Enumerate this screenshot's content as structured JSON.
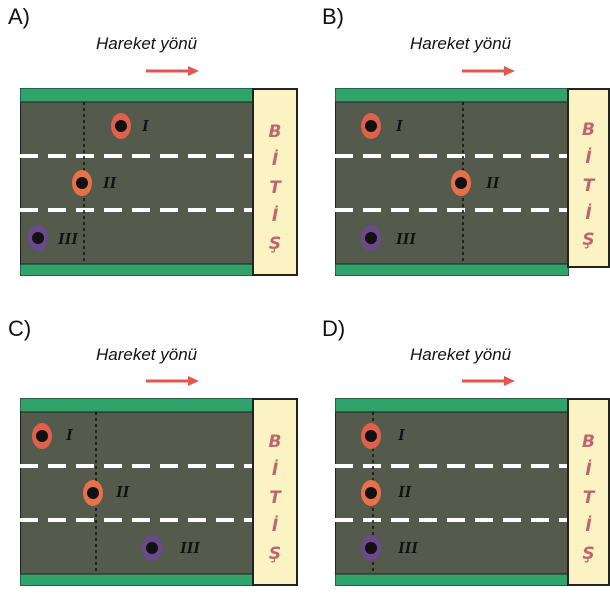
{
  "panels": [
    {
      "id": "A",
      "label": "A)"
    },
    {
      "id": "B",
      "label": "B)"
    },
    {
      "id": "C",
      "label": "C)"
    },
    {
      "id": "D",
      "label": "D)"
    }
  ],
  "direction_text": "Hareket yönü",
  "finish_letters": [
    "B",
    "İ",
    "T",
    "İ",
    "Ş"
  ],
  "lane_labels": [
    "I",
    "II",
    "III"
  ],
  "colors": {
    "asphalt": "#545a4c",
    "grass": "#2fa36a",
    "finish_bg": "#fbf3c4",
    "finish_text": "#c0666a",
    "arrow": "#e3574e",
    "runner_I": "#e0604a",
    "runner_II": "#e8704a",
    "runner_III": "#6b4a8c"
  }
}
